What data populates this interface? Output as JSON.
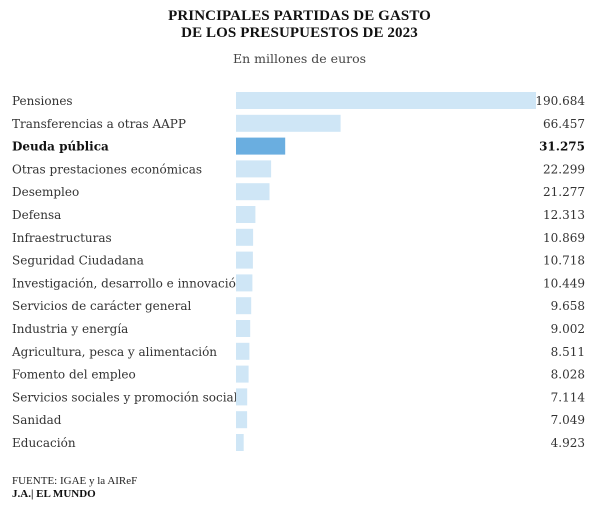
{
  "header": {
    "title_line1": "PRINCIPALES PARTIDAS DE GASTO",
    "title_line2": "DE LOS PRESUPUESTOS DE 2023",
    "subtitle": "En millones de euros"
  },
  "footer": {
    "source": "FUENTE: IGAE y la AIReF",
    "credit": "J.A.| EL MUNDO"
  },
  "colors": {
    "bar": "#cfe6f6",
    "bar_highlight": "#6aaee0"
  },
  "chart_data": {
    "type": "bar",
    "orientation": "horizontal",
    "categories": [
      "Pensiones",
      "Transferencias a otras AAPP",
      "Deuda pública",
      "Otras prestaciones económicas",
      "Desempleo",
      "Defensa",
      "Infraestructuras",
      "Seguridad Ciudadana",
      "Investigación, desarrollo e innovación",
      "Servicios de carácter general",
      "Industria y energía",
      "Agricultura, pesca y alimentación",
      "Fomento del empleo",
      "Servicios sociales y promoción social",
      "Sanidad",
      "Educación"
    ],
    "values": [
      190684,
      66457,
      31275,
      22299,
      21277,
      12313,
      10869,
      10718,
      10449,
      9658,
      9002,
      8511,
      8028,
      7114,
      7049,
      4923
    ],
    "value_labels": [
      "190.684",
      "66.457",
      "31.275",
      "22.299",
      "21.277",
      "12.313",
      "10.869",
      "10.718",
      "10.449",
      "9.658",
      "9.002",
      "8.511",
      "8.028",
      "7.114",
      "7.049",
      "4.923"
    ],
    "highlighted": "Deuda pública",
    "xlim": [
      0,
      190684
    ],
    "grid": false,
    "legend": "none"
  }
}
